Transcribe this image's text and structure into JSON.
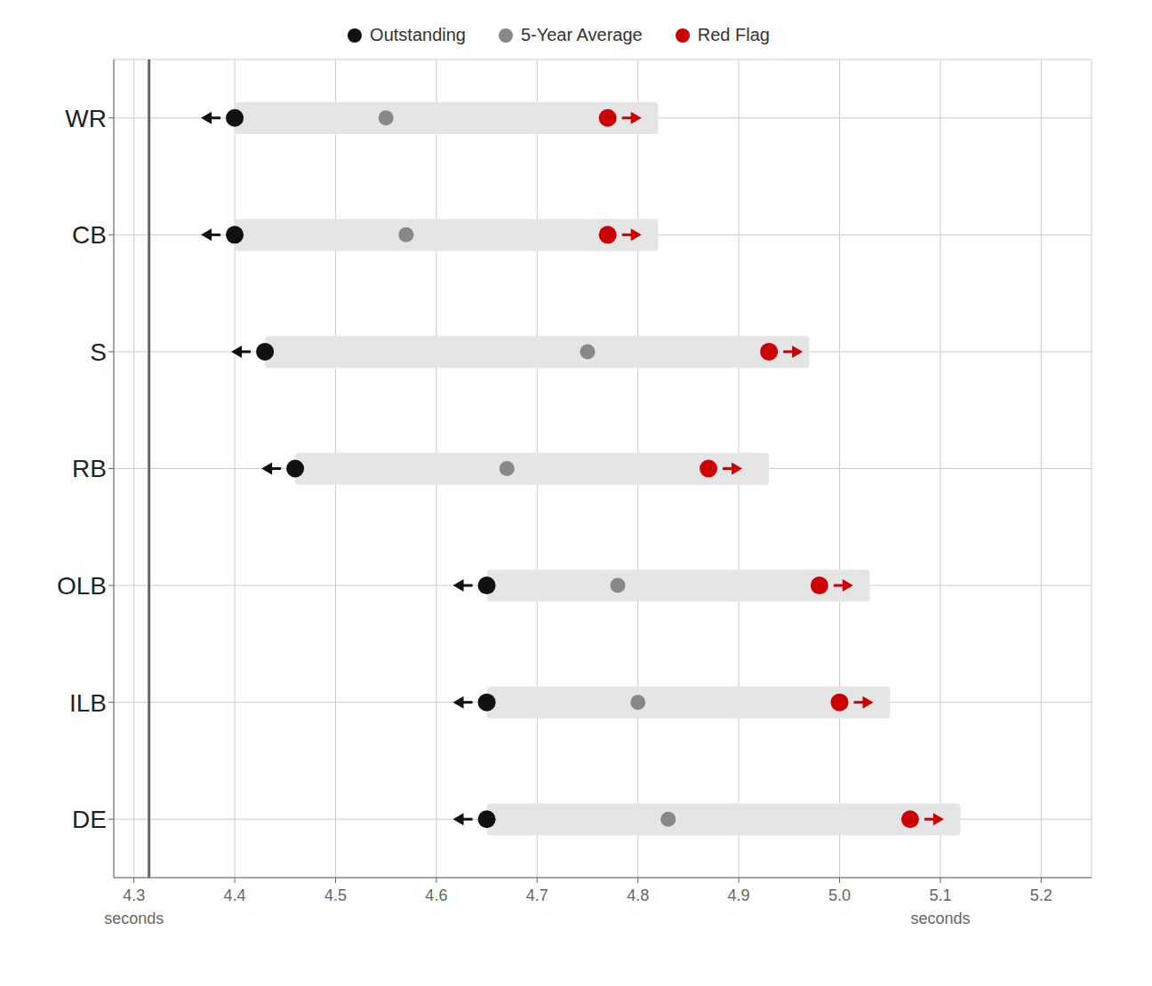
{
  "chart_data": {
    "type": "dot_range",
    "orientation": "horizontal",
    "categories": [
      "WR",
      "CB",
      "S",
      "RB",
      "OLB",
      "ILB",
      "DE"
    ],
    "series": [
      {
        "name": "Outstanding",
        "color": "#111111",
        "values": [
          4.4,
          4.4,
          4.43,
          4.46,
          4.65,
          4.65,
          4.65
        ]
      },
      {
        "name": "5-Year Average",
        "color": "#888888",
        "values": [
          4.55,
          4.57,
          4.75,
          4.67,
          4.78,
          4.8,
          4.83
        ]
      },
      {
        "name": "Red Flag",
        "color": "#cc0000",
        "values": [
          4.77,
          4.77,
          4.93,
          4.87,
          4.98,
          5.0,
          5.07
        ]
      }
    ],
    "bars": {
      "start": [
        4.4,
        4.4,
        4.43,
        4.46,
        4.65,
        4.65,
        4.65
      ],
      "end": [
        4.82,
        4.82,
        4.97,
        4.93,
        5.03,
        5.05,
        5.12
      ],
      "color": "#e5e5e5"
    },
    "vline": {
      "x": 4.315,
      "color": "#666666"
    },
    "xlim": [
      4.28,
      5.25
    ],
    "xticks": [
      {
        "value": 4.3,
        "label": "4.3"
      },
      {
        "value": 4.4,
        "label": "4.4"
      },
      {
        "value": 4.5,
        "label": "4.5"
      },
      {
        "value": 4.6,
        "label": "4.6"
      },
      {
        "value": 4.7,
        "label": "4.7"
      },
      {
        "value": 4.8,
        "label": "4.8"
      },
      {
        "value": 4.9,
        "label": "4.9"
      },
      {
        "value": 5.0,
        "label": "5.0"
      },
      {
        "value": 5.1,
        "label": "5.1"
      },
      {
        "value": 5.2,
        "label": "5.2"
      }
    ],
    "annotations": [
      {
        "text": "seconds",
        "x": 4.3
      },
      {
        "text": "seconds",
        "x": 5.1
      }
    ],
    "grid": true,
    "legend": "top"
  }
}
